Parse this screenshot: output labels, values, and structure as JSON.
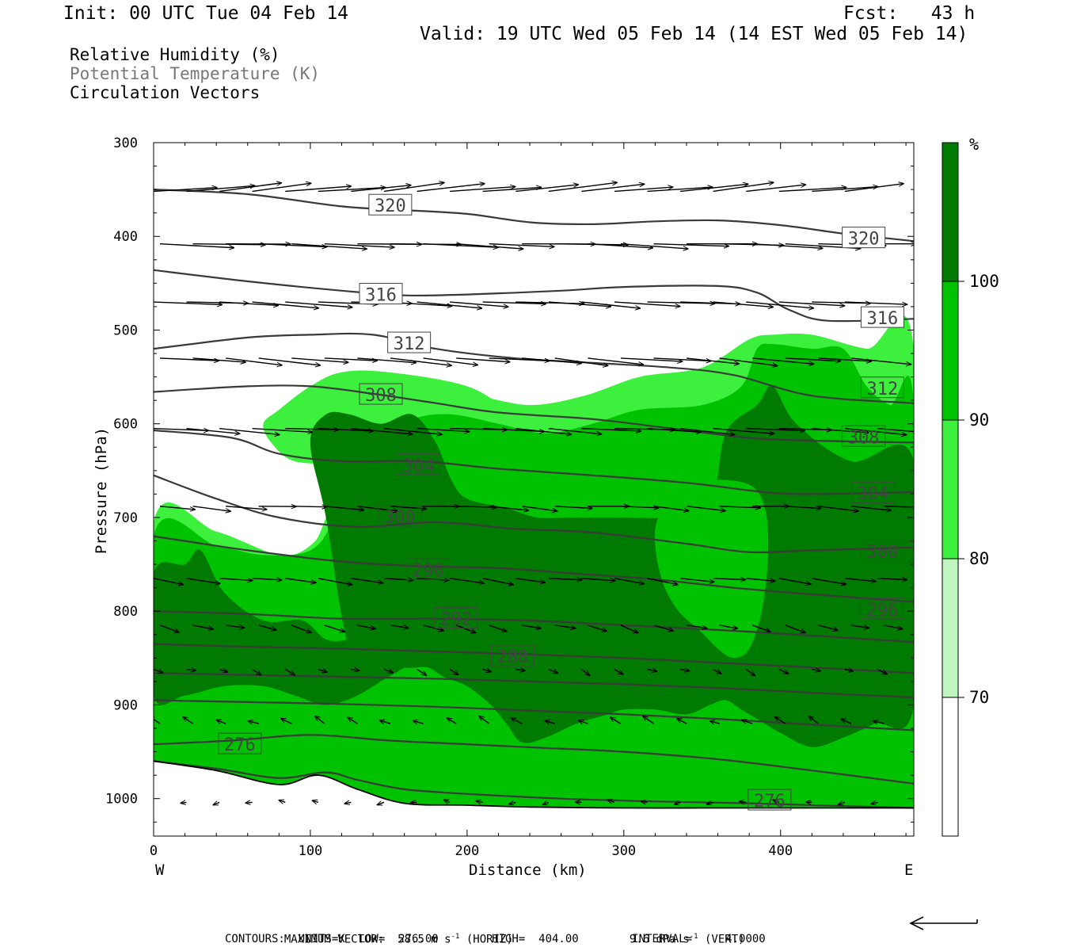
{
  "header": {
    "init": "Init: 00 UTC Tue 04 Feb 14",
    "fcst": "Fcst:   43 h",
    "valid": "Valid: 19 UTC Wed 05 Feb 14 (14 EST Wed 05 Feb 14)"
  },
  "legend_lines": [
    {
      "text": "Relative Humidity (%)",
      "color": "#000000"
    },
    {
      "text": "Potential Temperature (K)",
      "color": "#777777"
    },
    {
      "text": "Circulation Vectors",
      "color": "#000000"
    }
  ],
  "footer": {
    "max_vector_label": "MAXIMUM VECTOR:",
    "max_vector_horiz_value": "58.5 m s",
    "max_vector_horiz_exp": "-1",
    "max_vector_horiz_tag": "(HORIZ)",
    "max_vector_vert_value": "9.6 dPa s",
    "max_vector_vert_exp": "-1",
    "max_vector_vert_tag": "(VERT)",
    "contours": "CONTOURS:  UNITS=K  LOW=  276.00        HIGH=  404.00        INTERVAL=     4.0000"
  },
  "chart_data": {
    "type": "heatmap",
    "xlabel": "Distance (km)",
    "ylabel": "Pressure (hPa)",
    "xlim": [
      0,
      485
    ],
    "ylim": [
      1040,
      300
    ],
    "x_ticks": [
      0,
      100,
      200,
      300,
      400
    ],
    "y_ticks": [
      300,
      400,
      500,
      600,
      700,
      800,
      900,
      1000
    ],
    "x_end_labels": {
      "left": "W",
      "right": "E"
    },
    "colorbar": {
      "unit": "%",
      "levels": [
        70,
        80,
        90,
        100
      ],
      "colors": [
        "#ffffff",
        "#bff5bf",
        "#3ef03e",
        "#00c200",
        "#007a00"
      ]
    },
    "rh_regions": [
      {
        "level": 80,
        "x": [
          0,
          40,
          80,
          100,
          110,
          130,
          160,
          200,
          240,
          275,
          310,
          350,
          380,
          395,
          420,
          455,
          485,
          485,
          0
        ],
        "p": [
          705,
          715,
          740,
          730,
          700,
          600,
          580,
          570,
          580,
          570,
          550,
          540,
          510,
          505,
          505,
          520,
          520,
          1015,
          1015
        ]
      },
      {
        "level": 80,
        "x": [
          70,
          80,
          100,
          120,
          150,
          200,
          230,
          250,
          280,
          300,
          330,
          360,
          390,
          420,
          460,
          485,
          485,
          460,
          440,
          430,
          410,
          380,
          350,
          300,
          260,
          230,
          210,
          180,
          150,
          120,
          90,
          75
        ],
        "p": [
          600,
          585,
          560,
          545,
          545,
          560,
          590,
          610,
          600,
          585,
          575,
          560,
          525,
          515,
          525,
          520,
          530,
          560,
          600,
          615,
          620,
          610,
          600,
          580,
          595,
          620,
          610,
          600,
          620,
          640,
          640,
          620
        ]
      },
      {
        "level": 90,
        "x": [
          0,
          40,
          70,
          100,
          115,
          130,
          165,
          190,
          220,
          250,
          280,
          310,
          350,
          375,
          385,
          395,
          420,
          440,
          455,
          470,
          485,
          485,
          0
        ],
        "p": [
          720,
          730,
          740,
          735,
          700,
          620,
          595,
          590,
          600,
          610,
          600,
          585,
          580,
          560,
          520,
          515,
          520,
          520,
          560,
          580,
          580,
          1012,
          1012
        ]
      },
      {
        "level": 100,
        "x": [
          100,
          110,
          125,
          145,
          165,
          180,
          190,
          200,
          225,
          245,
          265,
          300,
          330,
          355,
          365,
          385,
          395,
          410,
          445,
          485,
          485,
          460,
          440,
          420,
          400,
          390,
          375,
          365,
          355,
          340,
          320,
          300,
          290,
          270,
          250,
          235,
          225,
          215,
          200,
          185,
          175,
          160,
          145,
          125,
          110
        ],
        "p": [
          620,
          590,
          590,
          600,
          590,
          620,
          660,
          680,
          690,
          700,
          700,
          700,
          700,
          690,
          610,
          580,
          560,
          600,
          640,
          640,
          900,
          920,
          935,
          945,
          930,
          920,
          905,
          895,
          900,
          910,
          905,
          905,
          910,
          920,
          935,
          940,
          920,
          900,
          880,
          870,
          860,
          860,
          850,
          840,
          700
        ]
      },
      {
        "level": 100,
        "x": [
          0,
          20,
          30,
          45,
          70,
          95,
          110,
          125,
          150,
          175,
          200,
          220,
          240,
          245,
          200,
          170,
          150,
          130,
          110,
          90,
          70,
          45,
          20,
          0
        ],
        "p": [
          760,
          750,
          735,
          780,
          810,
          810,
          830,
          830,
          820,
          810,
          820,
          840,
          850,
          870,
          860,
          855,
          870,
          890,
          900,
          890,
          880,
          880,
          890,
          890
        ]
      }
    ],
    "rh_inner_90": {
      "x": [
        322,
        335,
        355,
        380,
        390,
        392,
        388,
        380,
        370,
        360,
        348,
        335,
        325,
        320
      ],
      "p": [
        700,
        670,
        660,
        665,
        690,
        740,
        800,
        840,
        850,
        840,
        820,
        800,
        770,
        730
      ]
    },
    "theta_contours": [
      {
        "label": "320",
        "x": [
          0,
          60,
          120,
          160,
          200,
          240,
          280,
          320,
          360,
          400,
          440,
          485
        ],
        "p": [
          350,
          355,
          368,
          372,
          376,
          385,
          387,
          384,
          383,
          388,
          397,
          405
        ]
      },
      {
        "label": "316",
        "x": [
          0,
          60,
          120,
          160,
          200,
          260,
          300,
          360,
          385,
          405,
          430,
          485
        ],
        "p": [
          436,
          448,
          458,
          463,
          462,
          458,
          454,
          453,
          460,
          478,
          490,
          488
        ]
      },
      {
        "label": "312",
        "x": [
          0,
          60,
          100,
          140,
          180,
          230,
          280,
          330,
          370,
          420,
          485
        ],
        "p": [
          520,
          508,
          505,
          505,
          520,
          530,
          535,
          540,
          548,
          570,
          578
        ]
      },
      {
        "label": "308",
        "x": [
          0,
          60,
          100,
          140,
          180,
          220,
          280,
          330,
          380,
          420,
          485
        ],
        "p": [
          566,
          560,
          560,
          568,
          578,
          588,
          595,
          605,
          615,
          618,
          620
        ]
      },
      {
        "label": "304",
        "x": [
          0,
          50,
          80,
          120,
          170,
          220,
          280,
          340,
          390,
          420,
          485
        ],
        "p": [
          607,
          615,
          632,
          640,
          640,
          648,
          655,
          663,
          673,
          675,
          673
        ]
      },
      {
        "label": "300",
        "x": [
          0,
          40,
          80,
          130,
          180,
          230,
          280,
          340,
          380,
          420,
          485
        ],
        "p": [
          655,
          680,
          700,
          710,
          705,
          712,
          716,
          728,
          737,
          735,
          732
        ]
      },
      {
        "label": "296",
        "x": [
          0,
          60,
          120,
          170,
          220,
          270,
          320,
          370,
          420,
          485
        ],
        "p": [
          720,
          735,
          747,
          752,
          754,
          760,
          766,
          775,
          782,
          790
        ]
      },
      {
        "label": "292",
        "x": [
          0,
          60,
          120,
          180,
          240,
          300,
          360,
          420,
          485
        ],
        "p": [
          800,
          803,
          808,
          808,
          810,
          815,
          820,
          826,
          833
        ]
      },
      {
        "label": "288",
        "x": [
          0,
          60,
          120,
          180,
          240,
          300,
          360,
          420,
          485
        ],
        "p": [
          835,
          838,
          840,
          843,
          846,
          850,
          855,
          860,
          866
        ]
      },
      {
        "label": "",
        "x": [
          0,
          60,
          120,
          180,
          240,
          300,
          360,
          420,
          485
        ],
        "p": [
          866,
          868,
          870,
          872,
          875,
          878,
          882,
          887,
          892
        ]
      },
      {
        "label": "",
        "x": [
          0,
          60,
          120,
          180,
          240,
          300,
          360,
          420,
          485
        ],
        "p": [
          895,
          897,
          899,
          902,
          906,
          910,
          915,
          921,
          927
        ]
      },
      {
        "label": "276",
        "x": [
          0,
          50,
          100,
          150,
          200,
          250,
          300,
          360,
          420,
          485
        ],
        "p": [
          942,
          938,
          932,
          938,
          942,
          946,
          950,
          958,
          970,
          984
        ]
      },
      {
        "label": "",
        "x": [
          0,
          40,
          80,
          110,
          130,
          160,
          200,
          260,
          320,
          380,
          440,
          485
        ],
        "p": [
          960,
          968,
          978,
          972,
          980,
          990,
          995,
          1000,
          1003,
          1005,
          1008,
          1010
        ]
      }
    ],
    "theta_labels": [
      {
        "text": "320",
        "x": 151,
        "p": 367
      },
      {
        "text": "320",
        "x": 453,
        "p": 402
      },
      {
        "text": "316",
        "x": 145,
        "p": 462
      },
      {
        "text": "316",
        "x": 465,
        "p": 487
      },
      {
        "text": "312",
        "x": 163,
        "p": 514
      },
      {
        "text": "312",
        "x": 465,
        "p": 562
      },
      {
        "text": "308",
        "x": 145,
        "p": 569
      },
      {
        "text": "308",
        "x": 453,
        "p": 614
      },
      {
        "text": "304",
        "x": 169,
        "p": 644
      },
      {
        "text": "304",
        "x": 459,
        "p": 674
      },
      {
        "text": "300",
        "x": 157,
        "p": 699
      },
      {
        "text": "300",
        "x": 465,
        "p": 736
      },
      {
        "text": "296",
        "x": 175,
        "p": 756
      },
      {
        "text": "296",
        "x": 465,
        "p": 798
      },
      {
        "text": "292",
        "x": 193,
        "p": 808
      },
      {
        "text": "288",
        "x": 229,
        "p": 848
      },
      {
        "text": "276",
        "x": 55,
        "p": 942
      },
      {
        "text": "276",
        "x": 393,
        "p": 1002
      }
    ],
    "ground_line": {
      "x": [
        0,
        40,
        80,
        105,
        130,
        160,
        200,
        240,
        300,
        360,
        420,
        485
      ],
      "p": [
        960,
        970,
        985,
        975,
        990,
        1005,
        1007,
        1009,
        1010,
        1010,
        1010,
        1010
      ]
    },
    "vector_rows": [
      {
        "p": 352,
        "u": 0.5,
        "w": -0.05
      },
      {
        "p": 408,
        "u": 0.55,
        "w": 0.02
      },
      {
        "p": 470,
        "u": 0.5,
        "w": 0.03
      },
      {
        "p": 530,
        "u": 0.45,
        "w": 0.04
      },
      {
        "p": 605,
        "u": 0.45,
        "w": 0.03
      },
      {
        "p": 688,
        "u": 0.3,
        "w": 0.02
      },
      {
        "p": 765,
        "u": 0.25,
        "w": 0.03
      },
      {
        "p": 815,
        "u": 0.15,
        "w": 0.04
      },
      {
        "p": 862,
        "u": 0.07,
        "w": 0.03
      },
      {
        "p": 920,
        "u": -0.08,
        "w": -0.04
      },
      {
        "p": 1004,
        "u": -0.05,
        "w": 0.0
      }
    ]
  }
}
